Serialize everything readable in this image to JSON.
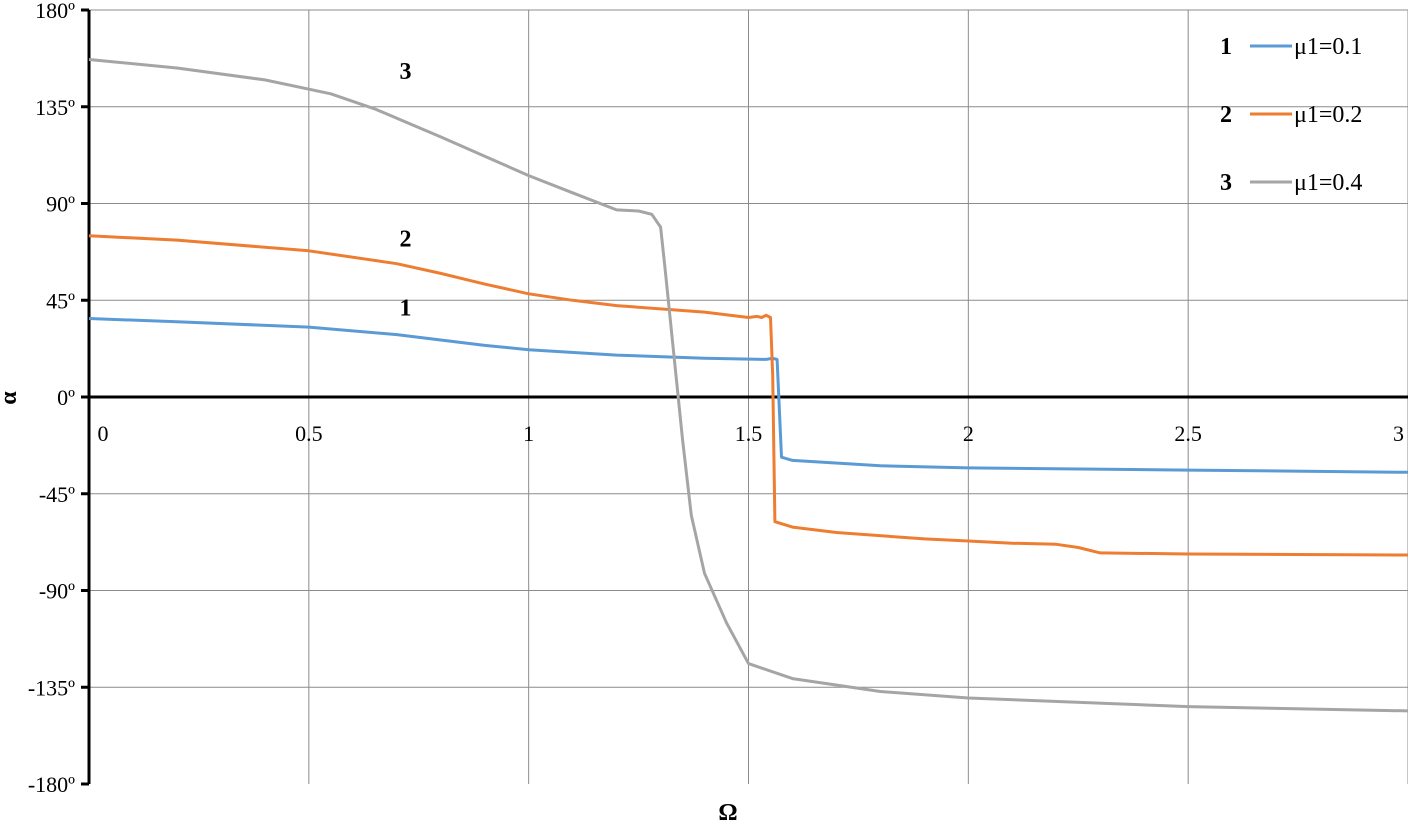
{
  "chart_data": {
    "type": "line",
    "xlabel": "Ω",
    "ylabel": "α",
    "xlim": [
      0,
      3
    ],
    "ylim": [
      -180,
      180
    ],
    "grid": true,
    "legend_position": "top-right",
    "x_ticks": [
      "0",
      "0.5",
      "1",
      "1.5",
      "2",
      "2.5",
      "3"
    ],
    "y_ticks": [
      "180º",
      "135º",
      "90º",
      "45º",
      "0º",
      "-45º",
      "-90º",
      "-135º",
      "-180º"
    ],
    "series": [
      {
        "name": "μ1=0.1",
        "number": "1",
        "color": "#5B9BD5",
        "label_at": [
          0.72,
          38
        ],
        "points": [
          [
            0,
            36.5
          ],
          [
            0.2,
            35
          ],
          [
            0.5,
            32.5
          ],
          [
            0.7,
            29
          ],
          [
            0.8,
            26.5
          ],
          [
            0.9,
            24
          ],
          [
            1.0,
            22
          ],
          [
            1.2,
            19.5
          ],
          [
            1.4,
            18
          ],
          [
            1.54,
            17.5
          ],
          [
            1.555,
            18
          ],
          [
            1.565,
            17.5
          ],
          [
            1.575,
            -28
          ],
          [
            1.6,
            -29.5
          ],
          [
            1.8,
            -32
          ],
          [
            2.0,
            -33
          ],
          [
            2.5,
            -34
          ],
          [
            3.0,
            -35
          ]
        ]
      },
      {
        "name": "μ1=0.2",
        "number": "2",
        "color": "#ED7D31",
        "label_at": [
          0.72,
          70
        ],
        "points": [
          [
            0,
            75
          ],
          [
            0.2,
            73
          ],
          [
            0.5,
            68
          ],
          [
            0.7,
            62
          ],
          [
            0.8,
            57.5
          ],
          [
            0.9,
            52.5
          ],
          [
            1.0,
            48
          ],
          [
            1.1,
            45
          ],
          [
            1.2,
            42.5
          ],
          [
            1.4,
            39.5
          ],
          [
            1.5,
            37
          ],
          [
            1.52,
            37.5
          ],
          [
            1.53,
            37
          ],
          [
            1.54,
            38
          ],
          [
            1.55,
            37
          ],
          [
            1.555,
            10
          ],
          [
            1.56,
            -58
          ],
          [
            1.6,
            -60.5
          ],
          [
            1.7,
            -63
          ],
          [
            1.9,
            -66
          ],
          [
            2.0,
            -67
          ],
          [
            2.1,
            -68
          ],
          [
            2.2,
            -68.5
          ],
          [
            2.25,
            -70
          ],
          [
            2.3,
            -72.5
          ],
          [
            2.5,
            -73
          ],
          [
            3.0,
            -73.5
          ]
        ]
      },
      {
        "name": "μ1=0.4",
        "number": "3",
        "color": "#A5A5A5",
        "label_at": [
          0.72,
          148
        ],
        "points": [
          [
            0,
            157
          ],
          [
            0.2,
            153
          ],
          [
            0.4,
            147.5
          ],
          [
            0.55,
            141
          ],
          [
            0.65,
            134
          ],
          [
            0.8,
            121
          ],
          [
            0.9,
            112
          ],
          [
            1.0,
            103
          ],
          [
            1.1,
            95
          ],
          [
            1.2,
            87
          ],
          [
            1.25,
            86.5
          ],
          [
            1.28,
            85
          ],
          [
            1.3,
            79
          ],
          [
            1.31,
            60
          ],
          [
            1.33,
            20
          ],
          [
            1.35,
            -20
          ],
          [
            1.37,
            -55
          ],
          [
            1.4,
            -82
          ],
          [
            1.45,
            -105
          ],
          [
            1.5,
            -124
          ],
          [
            1.6,
            -131
          ],
          [
            1.8,
            -137
          ],
          [
            2.0,
            -140
          ],
          [
            2.5,
            -144
          ],
          [
            3.0,
            -146
          ]
        ]
      }
    ]
  }
}
